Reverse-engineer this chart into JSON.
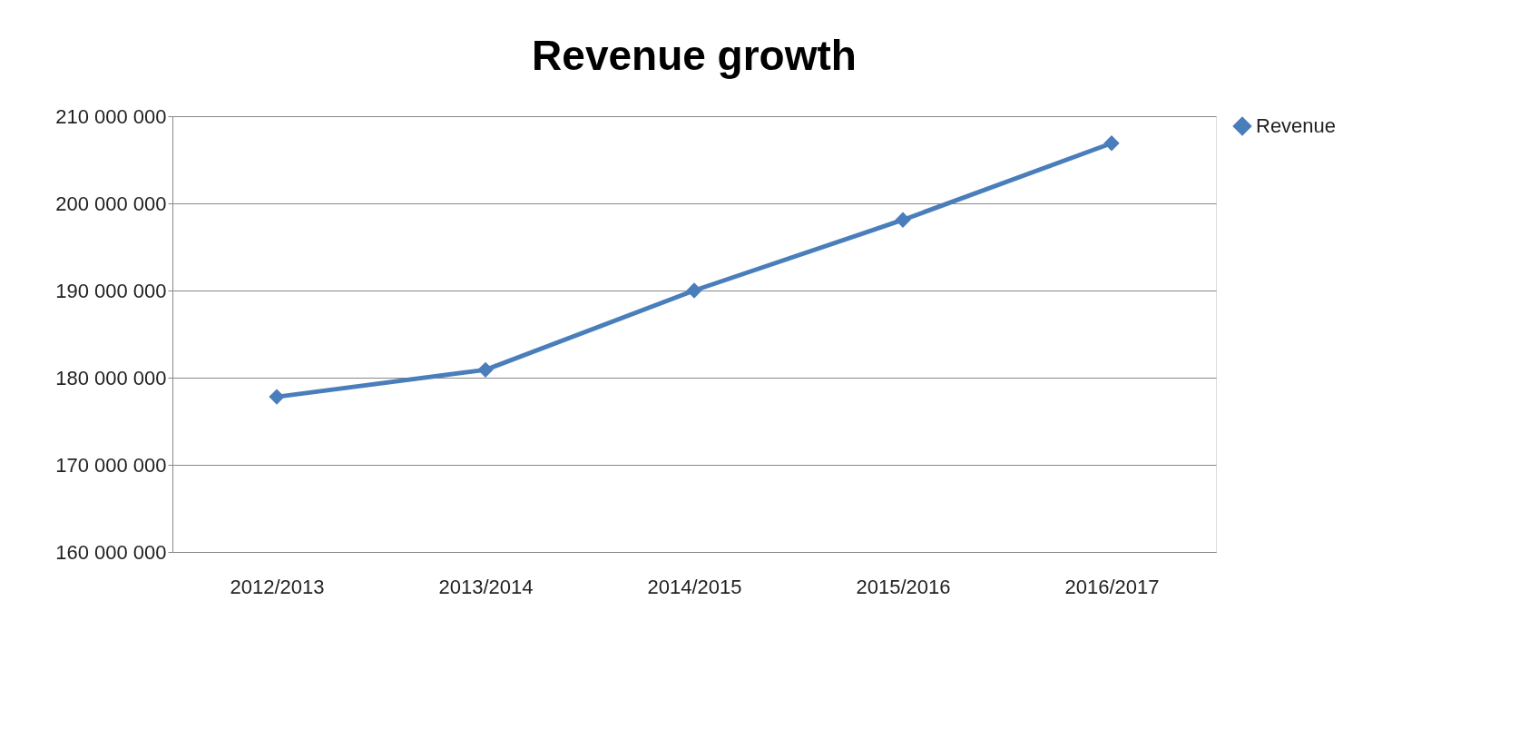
{
  "chart_data": {
    "type": "line",
    "title": "Revenue growth",
    "categories": [
      "2012/2013",
      "2013/2014",
      "2014/2015",
      "2015/2016",
      "2016/2017"
    ],
    "series": [
      {
        "name": "Revenue",
        "color": "#4a7ebb",
        "values": [
          177800000,
          180900000,
          190000000,
          198100000,
          206900000
        ]
      }
    ],
    "ylim": [
      160000000,
      210000000
    ],
    "yticks": [
      {
        "value": 160000000,
        "label": "160 000 000"
      },
      {
        "value": 170000000,
        "label": "170 000 000"
      },
      {
        "value": 180000000,
        "label": "180 000 000"
      },
      {
        "value": 190000000,
        "label": "190 000 000"
      },
      {
        "value": 200000000,
        "label": "200 000 000"
      },
      {
        "value": 210000000,
        "label": "210 000 000"
      }
    ],
    "grid": "y",
    "legend": "right",
    "marker": "diamond",
    "line_style": "solid"
  }
}
